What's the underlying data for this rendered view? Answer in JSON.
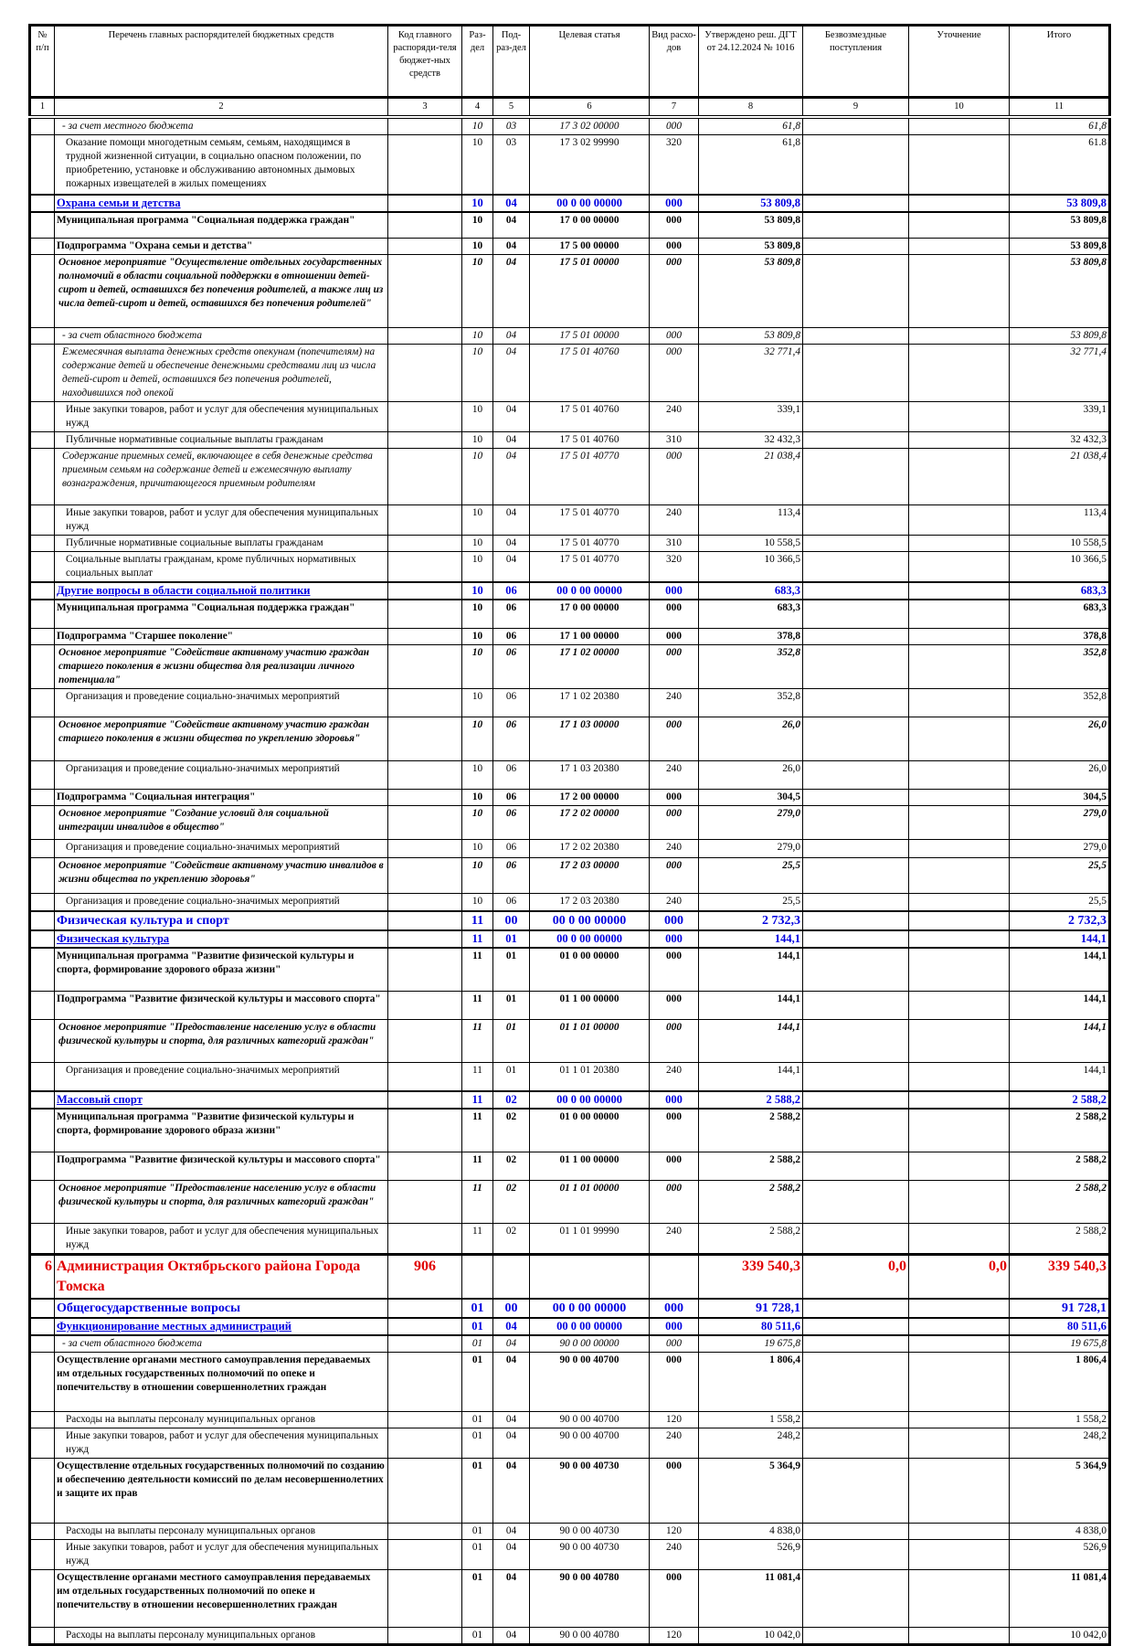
{
  "header": {
    "columns": [
      "№ п/п",
      "Перечень главных распорядителей бюджетных средств",
      "Код главного распоряди-теля бюджет-ных средств",
      "Раз-дел",
      "Под-раз-дел",
      "Целевая статья",
      "Вид расхо-дов",
      "Утверждено реш. ДГТ от 24.12.2024 № 1016",
      "Безвозмездные поступления",
      "Уточнение",
      "Итого"
    ],
    "numbers": [
      "1",
      "2",
      "3",
      "4",
      "5",
      "6",
      "7",
      "8",
      "9",
      "10",
      "11"
    ]
  },
  "colors": {
    "heading": "#0000e0",
    "organization": "#e00000"
  },
  "rows": [
    {
      "style": "i",
      "name": "- за счет местного бюджета",
      "rz": "10",
      "prz": "03",
      "cs": "17 3 02 00000",
      "vr": "000",
      "approved": "61,8",
      "total": "61,8"
    },
    {
      "style": "n",
      "name": "Оказание помощи многодетным семьям, семьям, находящимся в трудной жизненной ситуации, в социально опасном положении, по приобретению, установке и обслуживанию автономных дымовых пожарных извещателей в жилых помещениях",
      "rz": "10",
      "prz": "03",
      "cs": "17 3 02 99990",
      "vr": "320",
      "approved": "61,8",
      "total": "61.8"
    },
    {
      "style": "h",
      "name": "Охрана семьи и детства",
      "rz": "10",
      "prz": "04",
      "cs": "00 0 00 00000",
      "vr": "000",
      "approved": "53 809,8",
      "total": "53 809,8"
    },
    {
      "style": "b",
      "name": "Муниципальная программа \"Социальная поддержка граждан\"",
      "rz": "10",
      "prz": "04",
      "cs": "17 0 00 00000",
      "vr": "000",
      "approved": "53 809,8",
      "total": "53 809,8"
    },
    {
      "style": "b",
      "name": "Подпрограмма \"Охрана семьи и детства\"",
      "rz": "10",
      "prz": "04",
      "cs": "17 5 00 00000",
      "vr": "000",
      "approved": "53 809,8",
      "total": "53 809,8"
    },
    {
      "style": "bi",
      "name": "Основное мероприятие \"Осуществление отдельных государственных полномочий в области социальной поддержки в отношении детей-сирот и детей, оставшихся без попечения родителей, а также лиц из числа детей-сирот и детей, оставшихся без попечения родителей\"",
      "rz": "10",
      "prz": "04",
      "cs": "17 5 01 00000",
      "vr": "000",
      "approved": "53 809,8",
      "total": "53 809,8"
    },
    {
      "style": "i",
      "name": "- за счет областного бюджета",
      "rz": "10",
      "prz": "04",
      "cs": "17 5 01 00000",
      "vr": "000",
      "approved": "53 809,8",
      "total": "53 809,8"
    },
    {
      "style": "i",
      "name": "Ежемесячная выплата денежных средств опекунам (попечителям) на содержание детей и обеспечение денежными средствами лиц из числа детей-сирот и детей, оставшихся без попечения родителей, находившихся под опекой",
      "rz": "10",
      "prz": "04",
      "cs": "17 5 01 40760",
      "vr": "000",
      "approved": "32 771,4",
      "total": "32 771,4"
    },
    {
      "style": "n",
      "name": "Иные закупки товаров, работ и услуг для обеспечения муниципальных нужд",
      "rz": "10",
      "prz": "04",
      "cs": "17 5 01 40760",
      "vr": "240",
      "approved": "339,1",
      "total": "339,1"
    },
    {
      "style": "n",
      "name": "Публичные нормативные социальные выплаты гражданам",
      "rz": "10",
      "prz": "04",
      "cs": "17 5 01 40760",
      "vr": "310",
      "approved": "32 432,3",
      "total": "32 432,3"
    },
    {
      "style": "i",
      "name": "Содержание приемных семей, включающее в себя денежные средства приемным семьям на содержание детей и ежемесячную выплату вознаграждения, причитающегося приемным родителям",
      "rz": "10",
      "prz": "04",
      "cs": "17 5 01 40770",
      "vr": "000",
      "approved": "21 038,4",
      "total": "21 038,4"
    },
    {
      "style": "n",
      "name": "Иные закупки товаров, работ и услуг для обеспечения муниципальных нужд",
      "rz": "10",
      "prz": "04",
      "cs": "17 5 01 40770",
      "vr": "240",
      "approved": "113,4",
      "total": "113,4"
    },
    {
      "style": "n",
      "name": "Публичные нормативные социальные выплаты гражданам",
      "rz": "10",
      "prz": "04",
      "cs": "17 5 01 40770",
      "vr": "310",
      "approved": "10 558,5",
      "total": "10 558,5"
    },
    {
      "style": "n",
      "name": "Социальные выплаты гражданам, кроме публичных нормативных социальных выплат",
      "rz": "10",
      "prz": "04",
      "cs": "17 5 01 40770",
      "vr": "320",
      "approved": "10 366,5",
      "total": "10 366,5"
    },
    {
      "style": "h",
      "name": "Другие вопросы в области социальной политики",
      "rz": "10",
      "prz": "06",
      "cs": "00 0 00 00000",
      "vr": "000",
      "approved": "683,3",
      "total": "683,3"
    },
    {
      "style": "b",
      "name": "Муниципальная программа \"Социальная поддержка граждан\"",
      "rz": "10",
      "prz": "06",
      "cs": "17 0 00 00000",
      "vr": "000",
      "approved": "683,3",
      "total": "683,3"
    },
    {
      "style": "b",
      "name": "Подпрограмма \"Старшее поколение\"",
      "rz": "10",
      "prz": "06",
      "cs": "17 1 00 00000",
      "vr": "000",
      "approved": "378,8",
      "total": "378,8"
    },
    {
      "style": "bi",
      "name": "Основное мероприятие \"Содействие активному участию граждан старшего поколения в жизни общества для реализации личного потенциала\"",
      "rz": "10",
      "prz": "06",
      "cs": "17 1 02 00000",
      "vr": "000",
      "approved": "352,8",
      "total": "352,8"
    },
    {
      "style": "n",
      "name": "Организация и проведение социально-значимых мероприятий",
      "rz": "10",
      "prz": "06",
      "cs": "17 1 02 20380",
      "vr": "240",
      "approved": "352,8",
      "total": "352,8"
    },
    {
      "style": "bi",
      "name": "Основное мероприятие \"Содействие активному участию граждан старшего поколения в жизни общества по укреплению здоровья\"",
      "rz": "10",
      "prz": "06",
      "cs": "17 1 03 00000",
      "vr": "000",
      "approved": "26,0",
      "total": "26,0"
    },
    {
      "style": "n",
      "name": "Организация и проведение социально-значимых мероприятий",
      "rz": "10",
      "prz": "06",
      "cs": "17 1 03 20380",
      "vr": "240",
      "approved": "26,0",
      "total": "26,0"
    },
    {
      "style": "b",
      "name": "Подпрограмма \"Социальная интеграция\"",
      "rz": "10",
      "prz": "06",
      "cs": "17 2 00 00000",
      "vr": "000",
      "approved": "304,5",
      "total": "304,5"
    },
    {
      "style": "bi",
      "name": "Основное мероприятие \"Создание условий для социальной интеграции инвалидов в общество\"",
      "rz": "10",
      "prz": "06",
      "cs": "17 2 02 00000",
      "vr": "000",
      "approved": "279,0",
      "total": "279,0"
    },
    {
      "style": "n",
      "name": "Организация и проведение социально-значимых мероприятий",
      "rz": "10",
      "prz": "06",
      "cs": "17 2 02 20380",
      "vr": "240",
      "approved": "279,0",
      "total": "279,0"
    },
    {
      "style": "bi",
      "name": "Основное мероприятие \"Содействие активному участию инвалидов в жизни общества по укреплению здоровья\"",
      "rz": "10",
      "prz": "06",
      "cs": "17 2 03 00000",
      "vr": "000",
      "approved": "25,5",
      "total": "25,5"
    },
    {
      "style": "n",
      "name": "Организация и проведение социально-значимых мероприятий",
      "rz": "10",
      "prz": "06",
      "cs": "17 2 03 20380",
      "vr": "240",
      "approved": "25,5",
      "total": "25,5"
    },
    {
      "style": "H",
      "name": "Физическая культура и спорт",
      "rz": "11",
      "prz": "00",
      "cs": "00 0 00 00000",
      "vr": "000",
      "approved": "2 732,3",
      "total": "2 732,3"
    },
    {
      "style": "h",
      "name": "Физическая культура",
      "rz": "11",
      "prz": "01",
      "cs": "00 0 00 00000",
      "vr": "000",
      "approved": "144,1",
      "total": "144,1"
    },
    {
      "style": "b",
      "name": "Муниципальная программа \"Развитие физической культуры и спорта, формирование здорового образа жизни\"",
      "rz": "11",
      "prz": "01",
      "cs": "01 0 00 00000",
      "vr": "000",
      "approved": "144,1",
      "total": "144,1"
    },
    {
      "style": "b",
      "name": "Подпрограмма \"Развитие физической культуры и массового спорта\"",
      "rz": "11",
      "prz": "01",
      "cs": "01 1 00 00000",
      "vr": "000",
      "approved": "144,1",
      "total": "144,1"
    },
    {
      "style": "bi",
      "name": "Основное мероприятие \"Предоставление населению услуг в области физической культуры и спорта, для различных категорий граждан\"",
      "rz": "11",
      "prz": "01",
      "cs": "01 1 01 00000",
      "vr": "000",
      "approved": "144,1",
      "total": "144,1"
    },
    {
      "style": "n",
      "name": "Организация и проведение социально-значимых мероприятий",
      "rz": "11",
      "prz": "01",
      "cs": "01 1 01 20380",
      "vr": "240",
      "approved": "144,1",
      "total": "144,1"
    },
    {
      "style": "h",
      "name": "Массовый спорт",
      "rz": "11",
      "prz": "02",
      "cs": "00 0 00 00000",
      "vr": "000",
      "approved": "2 588,2",
      "total": "2 588,2"
    },
    {
      "style": "b",
      "name": "Муниципальная программа \"Развитие физической культуры и спорта, формирование здорового образа жизни\"",
      "rz": "11",
      "prz": "02",
      "cs": "01 0 00 00000",
      "vr": "000",
      "approved": "2 588,2",
      "total": "2 588,2"
    },
    {
      "style": "b",
      "name": "Подпрограмма \"Развитие физической культуры и массового спорта\"",
      "rz": "11",
      "prz": "02",
      "cs": "01 1 00 00000",
      "vr": "000",
      "approved": "2 588,2",
      "total": "2 588,2"
    },
    {
      "style": "bi",
      "name": "Основное мероприятие \"Предоставление населению услуг в области физической культуры и спорта, для различных категорий граждан\"",
      "rz": "11",
      "prz": "02",
      "cs": "01 1 01 00000",
      "vr": "000",
      "approved": "2 588,2",
      "total": "2 588,2"
    },
    {
      "style": "n",
      "name": "Иные закупки товаров, работ и услуг для обеспечения муниципальных нужд",
      "rz": "11",
      "prz": "02",
      "cs": "01 1 01 99990",
      "vr": "240",
      "approved": "2 588,2",
      "total": "2 588,2"
    },
    {
      "style": "r",
      "num": "6",
      "name": "Администрация Октябрьского района Города Томска",
      "code": "906",
      "approved": "339 540,3",
      "free": "0,0",
      "refine": "0,0",
      "total": "339 540,3"
    },
    {
      "style": "H",
      "name": "Общегосударственные вопросы",
      "rz": "01",
      "prz": "00",
      "cs": "00 0 00 00000",
      "vr": "000",
      "approved": "91 728,1",
      "total": "91 728,1"
    },
    {
      "style": "h",
      "name": "Функционирование местных администраций",
      "rz": "01",
      "prz": "04",
      "cs": "00 0 00 00000",
      "vr": "000",
      "approved": "80 511,6",
      "total": "80 511,6"
    },
    {
      "style": "i",
      "name": "- за счет областного бюджета",
      "rz": "01",
      "prz": "04",
      "cs": "90 0 00 00000",
      "vr": "000",
      "approved": "19 675,8",
      "total": "19 675,8"
    },
    {
      "style": "b",
      "name": "Осуществление органами местного самоуправления передаваемых им отдельных государственных полномочий по опеке и попечительству в отношении совершеннолетних граждан",
      "rz": "01",
      "prz": "04",
      "cs": "90 0 00 40700",
      "vr": "000",
      "approved": "1 806,4",
      "total": "1 806,4"
    },
    {
      "style": "n",
      "name": "Расходы на выплаты персоналу муниципальных органов",
      "rz": "01",
      "prz": "04",
      "cs": "90 0 00 40700",
      "vr": "120",
      "approved": "1 558,2",
      "total": "1 558,2"
    },
    {
      "style": "n",
      "name": "Иные закупки товаров, работ и услуг для обеспечения муниципальных нужд",
      "rz": "01",
      "prz": "04",
      "cs": "90 0 00 40700",
      "vr": "240",
      "approved": "248,2",
      "total": "248,2"
    },
    {
      "style": "b",
      "name": "Осуществление отдельных государственных полномочий по созданию и обеспечению деятельности комиссий по делам несовершеннолетних и защите их прав",
      "rz": "01",
      "prz": "04",
      "cs": "90 0 00 40730",
      "vr": "000",
      "approved": "5 364,9",
      "total": "5 364,9"
    },
    {
      "style": "n",
      "name": "Расходы на выплаты персоналу муниципальных органов",
      "rz": "01",
      "prz": "04",
      "cs": "90 0 00 40730",
      "vr": "120",
      "approved": "4 838,0",
      "total": "4 838,0"
    },
    {
      "style": "n",
      "name": "Иные закупки товаров, работ и услуг для обеспечения муниципальных нужд",
      "rz": "01",
      "prz": "04",
      "cs": "90 0 00 40730",
      "vr": "240",
      "approved": "526,9",
      "total": "526,9"
    },
    {
      "style": "b",
      "name": "Осуществление органами местного самоуправления передаваемых им отдельных государственных полномочий по опеке и попечительству в отношении несовершеннолетних граждан",
      "rz": "01",
      "prz": "04",
      "cs": "90 0 00 40780",
      "vr": "000",
      "approved": "11 081,4",
      "total": "11 081,4"
    },
    {
      "style": "n",
      "name": "Расходы на выплаты персоналу муниципальных органов",
      "rz": "01",
      "prz": "04",
      "cs": "90 0 00 40780",
      "vr": "120",
      "approved": "10 042,0",
      "total": "10 042,0"
    }
  ]
}
